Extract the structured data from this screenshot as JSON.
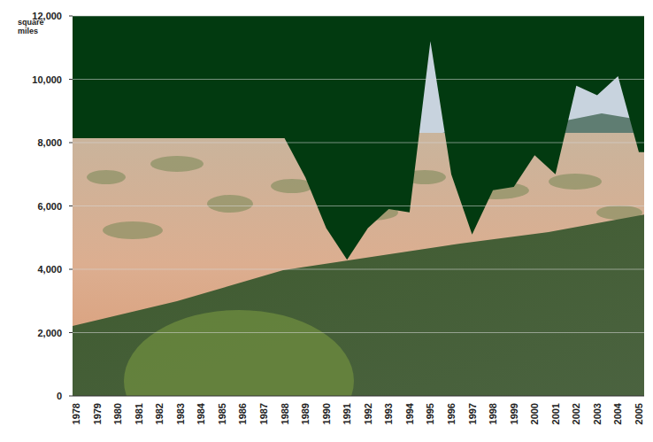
{
  "chart_data": {
    "type": "area",
    "y_label": "square miles",
    "categories": [
      "1978",
      "1979",
      "1980",
      "1981",
      "1982",
      "1983",
      "1984",
      "1985",
      "1986",
      "1987",
      "1988",
      "1989",
      "1990",
      "1991",
      "1992",
      "1993",
      "1994",
      "1995",
      "1996",
      "1997",
      "1998",
      "1999",
      "2000",
      "2001",
      "2002",
      "2003",
      "2004",
      "2005"
    ],
    "values": [
      8140,
      8140,
      8140,
      8140,
      8140,
      8140,
      8140,
      8140,
      8140,
      8140,
      8140,
      6900,
      5300,
      4300,
      5300,
      5900,
      5800,
      11200,
      7000,
      5100,
      6500,
      6600,
      7600,
      7000,
      9800,
      9500,
      10100,
      7700
    ],
    "color": "#023a10",
    "ylim": [
      0,
      12000
    ],
    "yticks": [
      0,
      {
        "value": 2000,
        "label": "2,000"
      },
      {
        "value": 4000,
        "label": "4,000"
      },
      {
        "value": 6000,
        "label": "6,000"
      },
      {
        "value": 8000,
        "label": "8,000"
      },
      {
        "value": 10000,
        "label": "10,000"
      },
      {
        "value": 12000,
        "label": "12,000"
      }
    ],
    "grid": true
  }
}
